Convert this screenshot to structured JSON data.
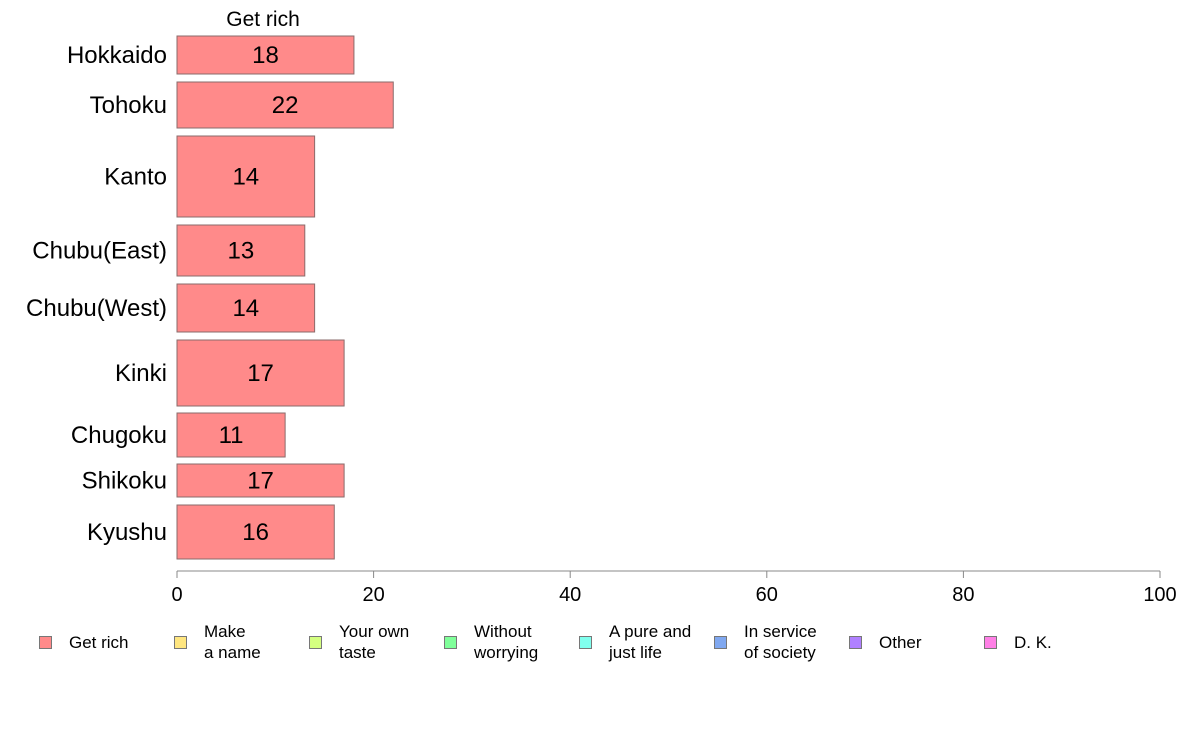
{
  "chart_data": {
    "type": "bar",
    "orientation": "horizontal",
    "panel_title": "Get rich",
    "categories": [
      "Hokkaido",
      "Tohoku",
      "Kanto",
      "Chubu(East)",
      "Chubu(West)",
      "Kinki",
      "Chugoku",
      "Shikoku",
      "Kyushu"
    ],
    "values": [
      18,
      22,
      14,
      13,
      14,
      17,
      11,
      17,
      16
    ],
    "value_labels": [
      "18",
      "22",
      "14",
      "13",
      "14",
      "17",
      "11",
      "17",
      "16"
    ],
    "xlim": [
      0,
      100
    ],
    "xticks": [
      "0",
      "20",
      "40",
      "60",
      "80",
      "100"
    ],
    "bar_color": "#ff8a8a",
    "legend_position": "bottom",
    "legend": [
      {
        "label": "Get rich",
        "color": "#ff8a8a"
      },
      {
        "label": "Make\na name",
        "color": "#ffe680"
      },
      {
        "label": "Your own\ntaste",
        "color": "#d4ff80"
      },
      {
        "label": "Without\nworrying",
        "color": "#80ff9a"
      },
      {
        "label": "A pure and\njust life",
        "color": "#80ffee"
      },
      {
        "label": "In service\nof society",
        "color": "#80a8f0"
      },
      {
        "label": "Other",
        "color": "#b080ff"
      },
      {
        "label": "D. K.",
        "color": "#ff80e6"
      }
    ]
  }
}
